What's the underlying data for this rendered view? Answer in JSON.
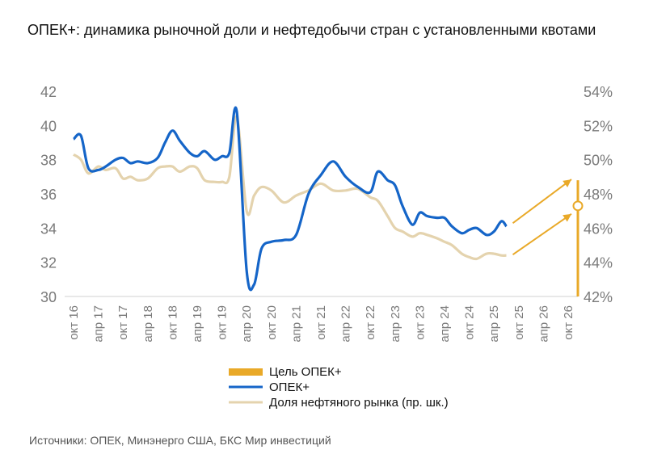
{
  "title": "ОПЕК+: динамика рыночной доли и нефтедобычи стран с установленными квотами",
  "source": "Источники: ОПЕК, Минэнерго США, БКС Мир инвестиций",
  "colors": {
    "opec": "#1565C8",
    "share": "#E4D3AE",
    "target": "#E9A928",
    "axis_text": "#7a7a7a"
  },
  "chart_data": {
    "type": "line",
    "title": "ОПЕК+: динамика рыночной доли и нефтедобычи стран с установленными квотами",
    "categories": [
      "окт 16",
      "апр 17",
      "окт 17",
      "апр 18",
      "окт 18",
      "апр 19",
      "окт 19",
      "апр 20",
      "окт 20",
      "апр 21",
      "окт 21",
      "апр 22",
      "окт 22",
      "апр 23",
      "окт 23",
      "апр 24",
      "окт 24",
      "апр 25",
      "окт 25",
      "апр 26",
      "окт 26"
    ],
    "y_left": {
      "ticks": [
        "42",
        "40",
        "38",
        "36",
        "34",
        "32",
        "30"
      ],
      "ylim": [
        30,
        42
      ]
    },
    "y_right": {
      "ticks": [
        "54%",
        "52%",
        "50%",
        "48%",
        "46%",
        "44%",
        "42%"
      ],
      "ylim": [
        42,
        54
      ],
      "unit": "%"
    },
    "grid": false,
    "legend_position": "bottom",
    "series": [
      {
        "name": "Цель ОПЕК+",
        "kind": "target-bar",
        "x": 20,
        "range": [
          30,
          36.8
        ],
        "marker": 35.3
      },
      {
        "name": "ОПЕК+",
        "axis": "left",
        "x": [
          0,
          0.3,
          0.6,
          1,
          1.3,
          1.7,
          2,
          2.3,
          2.6,
          3,
          3.4,
          3.7,
          4,
          4.3,
          4.7,
          5,
          5.3,
          5.7,
          6,
          6.3,
          6.6,
          7,
          7.3,
          7.6,
          8,
          8.5,
          9,
          9.5,
          10,
          10.5,
          11,
          11.5,
          12,
          12.3,
          12.7,
          13,
          13.3,
          13.7,
          14,
          14.3,
          14.7,
          15,
          15.3,
          15.7,
          16,
          16.3,
          16.7,
          17,
          17.3,
          17.5
        ],
        "values": [
          39.2,
          39.4,
          37.5,
          37.4,
          37.6,
          38.0,
          38.1,
          37.8,
          37.9,
          37.8,
          38.1,
          39.0,
          39.7,
          39.1,
          38.4,
          38.2,
          38.5,
          38.0,
          38.2,
          38.4,
          40.8,
          31.5,
          30.7,
          32.8,
          33.2,
          33.3,
          33.6,
          36.0,
          37.1,
          37.9,
          37.0,
          36.4,
          36.1,
          37.3,
          36.8,
          36.5,
          35.3,
          34.2,
          34.9,
          34.7,
          34.6,
          34.6,
          34.1,
          33.7,
          33.9,
          34.0,
          33.6,
          33.8,
          34.4,
          34.1
        ]
      },
      {
        "name": "Доля нефтяного рынка (пр. шк.)",
        "axis": "right",
        "x": [
          0,
          0.3,
          0.6,
          1,
          1.3,
          1.7,
          2,
          2.3,
          2.6,
          3,
          3.4,
          3.7,
          4,
          4.3,
          4.7,
          5,
          5.3,
          5.7,
          6,
          6.3,
          6.6,
          7,
          7.3,
          7.6,
          8,
          8.5,
          9,
          9.5,
          10,
          10.5,
          11,
          11.5,
          12,
          12.3,
          12.7,
          13,
          13.3,
          13.7,
          14,
          14.3,
          14.7,
          15,
          15.3,
          15.7,
          16,
          16.3,
          16.7,
          17,
          17.3,
          17.5
        ],
        "values": [
          50.3,
          50.0,
          49.2,
          49.6,
          49.4,
          49.5,
          48.9,
          49.0,
          48.8,
          48.9,
          49.5,
          49.6,
          49.6,
          49.3,
          49.6,
          49.5,
          48.8,
          48.7,
          48.7,
          49.0,
          52.5,
          47.0,
          47.9,
          48.4,
          48.2,
          47.5,
          47.9,
          48.2,
          48.6,
          48.2,
          48.2,
          48.3,
          47.8,
          47.6,
          46.7,
          46.0,
          45.8,
          45.5,
          45.7,
          45.6,
          45.4,
          45.2,
          45.0,
          44.5,
          44.3,
          44.2,
          44.5,
          44.5,
          44.4,
          44.4
        ]
      }
    ]
  }
}
